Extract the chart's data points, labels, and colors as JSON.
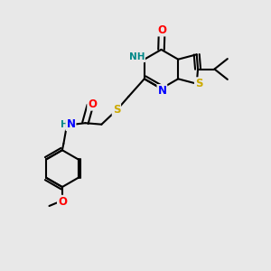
{
  "bg_color": "#e8e8e8",
  "bond_color": "#000000",
  "atom_colors": {
    "O": "#ff0000",
    "N": "#0000ff",
    "S": "#ccaa00",
    "H": "#008888",
    "C": "#000000"
  }
}
